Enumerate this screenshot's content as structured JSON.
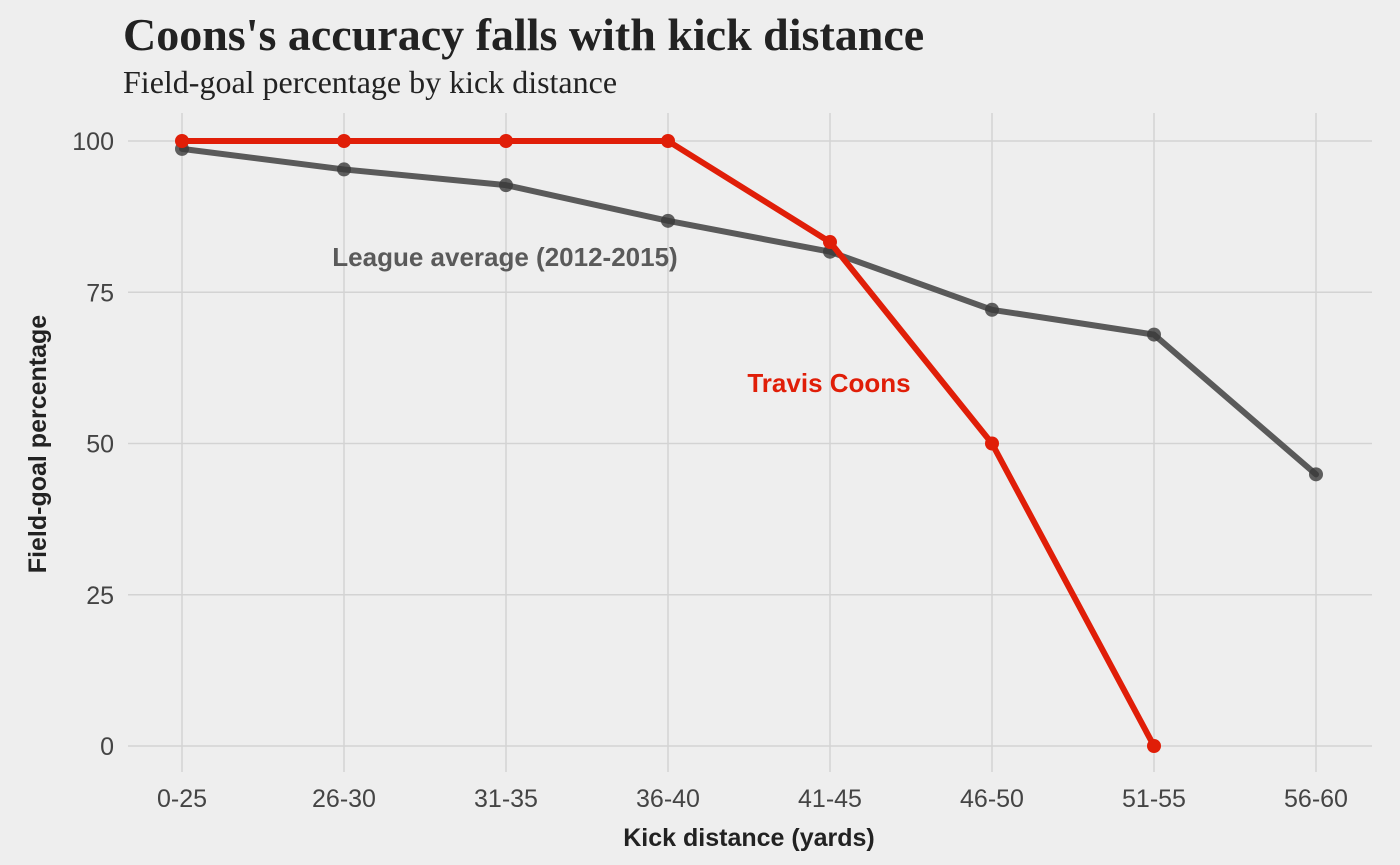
{
  "chart_data": {
    "type": "line",
    "title": "Coons's accuracy falls with kick distance",
    "subtitle": "Field-goal percentage by kick distance",
    "xlabel": "Kick distance (yards)",
    "ylabel": "Field-goal percentage",
    "categories": [
      "0-25",
      "26-30",
      "31-35",
      "36-40",
      "41-45",
      "46-50",
      "51-55",
      "56-60"
    ],
    "ylim": [
      0,
      100
    ],
    "yticks": [
      0,
      25,
      50,
      75,
      100
    ],
    "grid": true,
    "legend": "none",
    "series": [
      {
        "name": "League average (2012-2015)",
        "color": "#5a5a5a",
        "values": [
          98.7,
          95.3,
          92.7,
          86.8,
          81.7,
          72.1,
          68.0,
          44.9
        ]
      },
      {
        "name": "Travis Coons",
        "color": "#e01e08",
        "values": [
          100,
          100,
          100,
          100,
          83.3,
          50,
          0,
          null
        ]
      }
    ]
  },
  "colors": {
    "background": "#eeeeee",
    "grid": "#d3d3d3",
    "league": "#5a5a5a",
    "coons": "#e01e08"
  }
}
